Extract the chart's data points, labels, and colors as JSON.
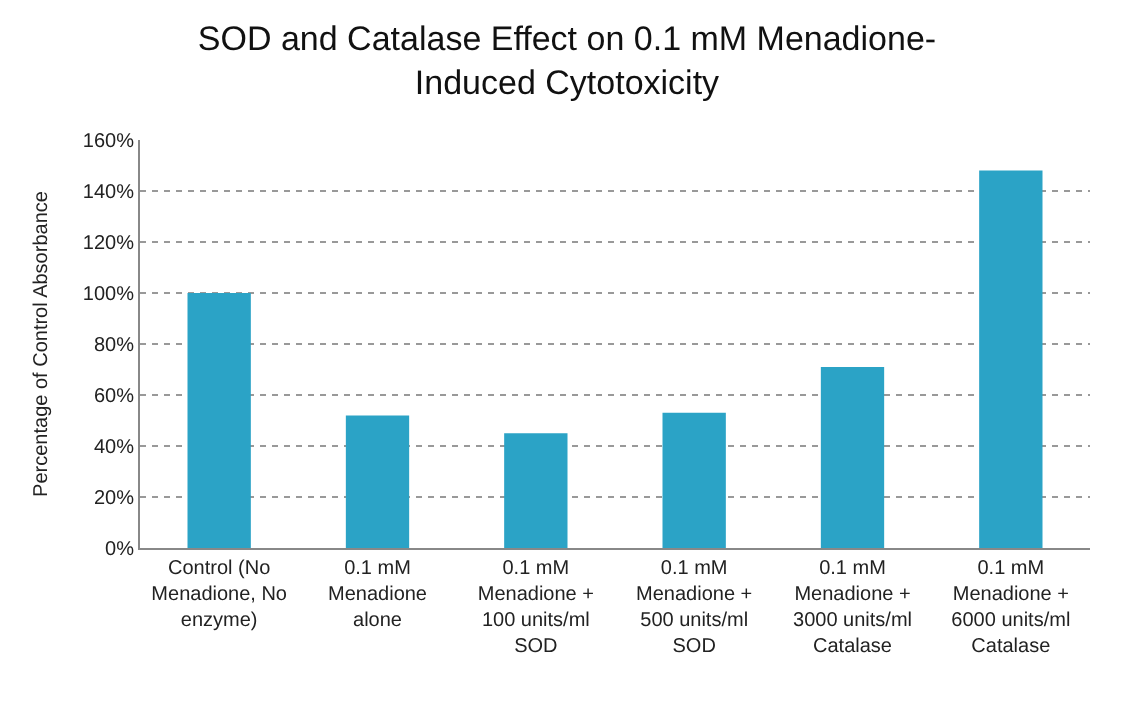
{
  "chart_data": {
    "type": "bar",
    "title": "SOD and Catalase Effect on 0.1 mM Menadione-Induced Cytotoxicity",
    "ylabel": "Percentage of Control Absorbance",
    "categories": [
      "Control (No Menadione, No enzyme)",
      "0.1 mM Menadione alone",
      "0.1 mM Menadione + 100 units/ml SOD",
      "0.1 mM Menadione + 500 units/ml SOD",
      "0.1 mM Menadione + 3000 units/ml Catalase",
      "0.1 mM Menadione + 6000 units/ml Catalase"
    ],
    "values": [
      100,
      52,
      45,
      53,
      71,
      148
    ],
    "color": "#2ba3c6",
    "ylim": [
      0,
      160
    ],
    "yticks": [
      {
        "value": 0,
        "label": "0%"
      },
      {
        "value": 20,
        "label": "20%"
      },
      {
        "value": 40,
        "label": "40%"
      },
      {
        "value": 60,
        "label": "60%"
      },
      {
        "value": 80,
        "label": "80%"
      },
      {
        "value": 100,
        "label": "100%"
      },
      {
        "value": 120,
        "label": "120%"
      },
      {
        "value": 140,
        "label": "140%"
      },
      {
        "value": 160,
        "label": "160%"
      }
    ],
    "grid": "y"
  }
}
